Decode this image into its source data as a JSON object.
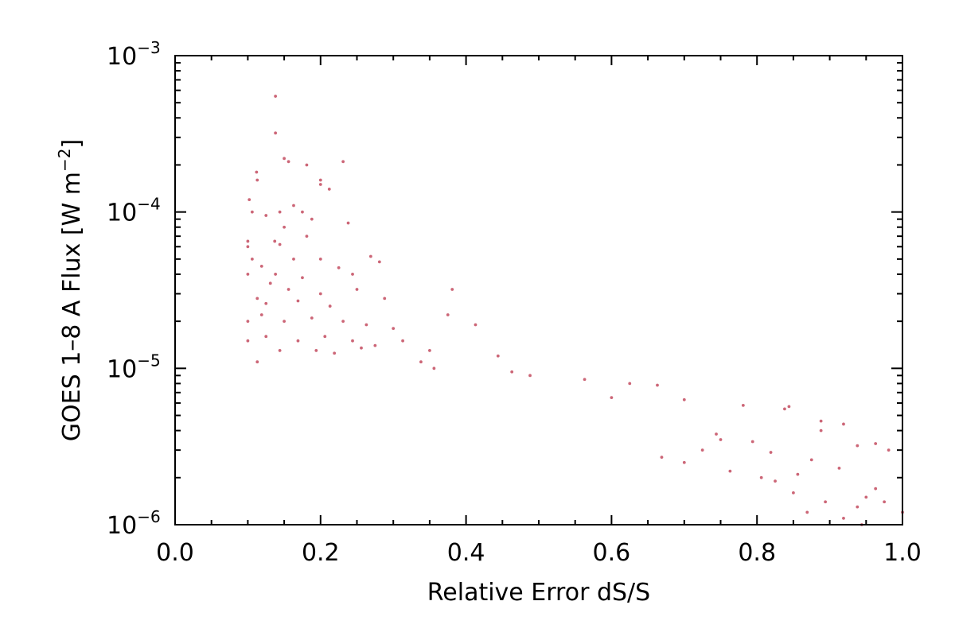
{
  "chart_data": {
    "type": "scatter",
    "title": "",
    "xlabel": "Relative Error dS/S",
    "ylabel_main": "GOES 1–8 A Flux [W m",
    "ylabel_sup": "−2",
    "ylabel_end": "]",
    "xlim": [
      0.0,
      1.0
    ],
    "ylim": [
      1e-06,
      0.001
    ],
    "yscale": "log",
    "grid": false,
    "legend": "none",
    "x_ticks": [
      {
        "value": 0.0,
        "label": "0.0"
      },
      {
        "value": 0.2,
        "label": "0.2"
      },
      {
        "value": 0.4,
        "label": "0.4"
      },
      {
        "value": 0.6,
        "label": "0.6"
      },
      {
        "value": 0.8,
        "label": "0.8"
      },
      {
        "value": 1.0,
        "label": "1.0"
      }
    ],
    "y_ticks": [
      {
        "value": 1e-06,
        "base": "10",
        "exp": "−6"
      },
      {
        "value": 1e-05,
        "base": "10",
        "exp": "−5"
      },
      {
        "value": 0.0001,
        "base": "10",
        "exp": "−4"
      },
      {
        "value": 0.001,
        "base": "10",
        "exp": "−3"
      }
    ],
    "marker_color": "#cc6677",
    "points": [
      [
        0.138,
        0.00055
      ],
      [
        0.138,
        0.00032
      ],
      [
        0.15,
        0.00022
      ],
      [
        0.156,
        0.00021
      ],
      [
        0.181,
        0.0002
      ],
      [
        0.231,
        0.00021
      ],
      [
        0.2,
        0.00016
      ],
      [
        0.2,
        0.00015
      ],
      [
        0.212,
        0.00014
      ],
      [
        0.112,
        0.00018
      ],
      [
        0.113,
        0.00016
      ],
      [
        0.102,
        0.00012
      ],
      [
        0.106,
        0.0001
      ],
      [
        0.125,
        9.5e-05
      ],
      [
        0.144,
        0.0001
      ],
      [
        0.163,
        0.00011
      ],
      [
        0.175,
        0.0001
      ],
      [
        0.15,
        8e-05
      ],
      [
        0.188,
        9e-05
      ],
      [
        0.238,
        8.5e-05
      ],
      [
        0.1,
        6.5e-05
      ],
      [
        0.1,
        6e-05
      ],
      [
        0.137,
        6.5e-05
      ],
      [
        0.144,
        6.2e-05
      ],
      [
        0.181,
        7e-05
      ],
      [
        0.106,
        5e-05
      ],
      [
        0.119,
        4.5e-05
      ],
      [
        0.163,
        5e-05
      ],
      [
        0.2,
        5e-05
      ],
      [
        0.269,
        5.2e-05
      ],
      [
        0.281,
        4.8e-05
      ],
      [
        0.1,
        4e-05
      ],
      [
        0.138,
        4e-05
      ],
      [
        0.175,
        3.8e-05
      ],
      [
        0.225,
        4.4e-05
      ],
      [
        0.244,
        4e-05
      ],
      [
        0.131,
        3.5e-05
      ],
      [
        0.156,
        3.2e-05
      ],
      [
        0.2,
        3e-05
      ],
      [
        0.25,
        3.2e-05
      ],
      [
        0.381,
        3.2e-05
      ],
      [
        0.113,
        2.8e-05
      ],
      [
        0.125,
        2.6e-05
      ],
      [
        0.169,
        2.7e-05
      ],
      [
        0.213,
        2.5e-05
      ],
      [
        0.288,
        2.8e-05
      ],
      [
        0.1,
        2e-05
      ],
      [
        0.119,
        2.2e-05
      ],
      [
        0.15,
        2e-05
      ],
      [
        0.188,
        2.1e-05
      ],
      [
        0.231,
        2e-05
      ],
      [
        0.263,
        1.9e-05
      ],
      [
        0.3,
        1.8e-05
      ],
      [
        0.375,
        2.2e-05
      ],
      [
        0.413,
        1.9e-05
      ],
      [
        0.1,
        1.5e-05
      ],
      [
        0.125,
        1.6e-05
      ],
      [
        0.169,
        1.5e-05
      ],
      [
        0.206,
        1.6e-05
      ],
      [
        0.244,
        1.5e-05
      ],
      [
        0.275,
        1.4e-05
      ],
      [
        0.313,
        1.5e-05
      ],
      [
        0.35,
        1.3e-05
      ],
      [
        0.444,
        1.2e-05
      ],
      [
        0.144,
        1.3e-05
      ],
      [
        0.194,
        1.3e-05
      ],
      [
        0.219,
        1.25e-05
      ],
      [
        0.256,
        1.35e-05
      ],
      [
        0.338,
        1.1e-05
      ],
      [
        0.113,
        1.1e-05
      ],
      [
        0.356,
        1e-05
      ],
      [
        0.463,
        9.5e-06
      ],
      [
        0.488,
        9e-06
      ],
      [
        0.563,
        8.5e-06
      ],
      [
        0.625,
        8e-06
      ],
      [
        0.663,
        7.8e-06
      ],
      [
        0.6,
        6.5e-06
      ],
      [
        0.7,
        6.3e-06
      ],
      [
        0.781,
        5.8e-06
      ],
      [
        0.838,
        5.5e-06
      ],
      [
        0.844,
        5.7e-06
      ],
      [
        0.888,
        4.6e-06
      ],
      [
        0.919,
        4.4e-06
      ],
      [
        0.888,
        4e-06
      ],
      [
        0.744,
        3.8e-06
      ],
      [
        0.794,
        3.4e-06
      ],
      [
        0.938,
        3.2e-06
      ],
      [
        0.981,
        3e-06
      ],
      [
        0.75,
        3.5e-06
      ],
      [
        0.963,
        3.3e-06
      ],
      [
        0.725,
        3e-06
      ],
      [
        0.819,
        2.9e-06
      ],
      [
        0.875,
        2.6e-06
      ],
      [
        0.913,
        2.3e-06
      ],
      [
        0.856,
        2.1e-06
      ],
      [
        0.669,
        2.7e-06
      ],
      [
        0.7,
        2.5e-06
      ],
      [
        0.763,
        2.2e-06
      ],
      [
        0.806,
        2e-06
      ],
      [
        0.963,
        1.7e-06
      ],
      [
        0.95,
        1.5e-06
      ],
      [
        0.975,
        1.4e-06
      ],
      [
        0.938,
        1.3e-06
      ],
      [
        1.0,
        1.2e-06
      ],
      [
        0.919,
        1.1e-06
      ],
      [
        0.944,
        1e-06
      ],
      [
        0.825,
        1.9e-06
      ],
      [
        0.85,
        1.6e-06
      ],
      [
        0.894,
        1.4e-06
      ],
      [
        0.869,
        1.2e-06
      ]
    ]
  }
}
